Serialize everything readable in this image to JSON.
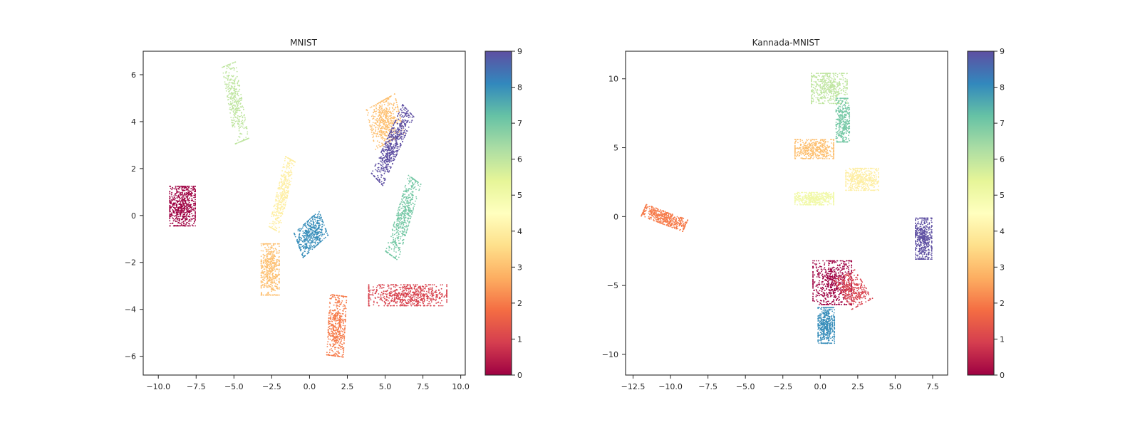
{
  "chart_data": [
    {
      "type": "scatter",
      "title": "MNIST",
      "xlabel": "",
      "ylabel": "",
      "xlim": [
        -11.0,
        10.3
      ],
      "ylim": [
        -6.8,
        7.0
      ],
      "xticks": [
        -10.0,
        -7.5,
        -5.0,
        -2.5,
        0.0,
        2.5,
        5.0,
        7.5,
        10.0
      ],
      "xtick_labels": [
        "−10.0",
        "−7.5",
        "−5.0",
        "−2.5",
        "0.0",
        "2.5",
        "5.0",
        "7.5",
        "10.0"
      ],
      "yticks": [
        -6,
        -4,
        -2,
        0,
        2,
        4,
        6
      ],
      "ytick_labels": [
        "−6",
        "−4",
        "−2",
        "0",
        "2",
        "4",
        "6"
      ],
      "grid": false,
      "colormap": "Spectral",
      "colorbar": {
        "min": 0,
        "max": 9,
        "ticks": [
          0,
          1,
          2,
          3,
          4,
          5,
          6,
          7,
          8,
          9
        ],
        "tick_labels": [
          "0",
          "1",
          "2",
          "3",
          "4",
          "5",
          "6",
          "7",
          "8",
          "9"
        ]
      },
      "clusters": [
        {
          "label": 0,
          "center": [
            -8.4,
            0.4
          ],
          "spread": [
            0.85,
            0.85
          ],
          "angle": 0,
          "n": 650
        },
        {
          "label": 1,
          "center": [
            6.5,
            -3.4
          ],
          "spread": [
            2.6,
            0.45
          ],
          "angle": 0,
          "n": 700
        },
        {
          "label": 2,
          "center": [
            1.8,
            -4.7
          ],
          "spread": [
            0.55,
            1.3
          ],
          "angle": -5,
          "n": 500
        },
        {
          "label": 3,
          "center": [
            -2.6,
            -2.3
          ],
          "spread": [
            0.6,
            1.1
          ],
          "angle": 0,
          "n": 500
        },
        {
          "label": 3,
          "center": [
            5.0,
            4.0
          ],
          "spread": [
            1.0,
            0.9
          ],
          "angle": 20,
          "n": 500
        },
        {
          "label": 4,
          "center": [
            -1.8,
            0.9
          ],
          "spread": [
            0.35,
            1.6
          ],
          "angle": -20,
          "n": 400
        },
        {
          "label": 6,
          "center": [
            -4.9,
            4.8
          ],
          "spread": [
            0.45,
            1.7
          ],
          "angle": 15,
          "n": 380
        },
        {
          "label": 7,
          "center": [
            6.2,
            -0.1
          ],
          "spread": [
            0.45,
            1.8
          ],
          "angle": -25,
          "n": 500
        },
        {
          "label": 8,
          "center": [
            0.1,
            -0.8
          ],
          "spread": [
            0.95,
            0.6
          ],
          "angle": 30,
          "n": 500
        },
        {
          "label": 9,
          "center": [
            5.5,
            3.0
          ],
          "spread": [
            0.45,
            1.8
          ],
          "angle": -35,
          "n": 600
        }
      ]
    },
    {
      "type": "scatter",
      "title": "Kannada-MNIST",
      "xlabel": "",
      "ylabel": "",
      "xlim": [
        -13.0,
        8.5
      ],
      "ylim": [
        -11.5,
        12.0
      ],
      "xticks": [
        -12.5,
        -10.0,
        -7.5,
        -5.0,
        -2.5,
        0.0,
        2.5,
        5.0,
        7.5
      ],
      "xtick_labels": [
        "−12.5",
        "−10.0",
        "−7.5",
        "−5.0",
        "−2.5",
        "0.0",
        "2.5",
        "5.0",
        "7.5"
      ],
      "yticks": [
        -10,
        -5,
        0,
        5,
        10
      ],
      "ytick_labels": [
        "−10",
        "−5",
        "0",
        "5",
        "10"
      ],
      "grid": false,
      "colormap": "Spectral",
      "colorbar": {
        "min": 0,
        "max": 9,
        "ticks": [
          0,
          1,
          2,
          3,
          4,
          5,
          6,
          7,
          8,
          9
        ],
        "tick_labels": [
          "0",
          "1",
          "2",
          "3",
          "4",
          "5",
          "6",
          "7",
          "8",
          "9"
        ]
      },
      "clusters": [
        {
          "label": 0,
          "center": [
            0.8,
            -4.8
          ],
          "spread": [
            1.3,
            1.6
          ],
          "angle": 0,
          "n": 650
        },
        {
          "label": 1,
          "center": [
            2.2,
            -5.3
          ],
          "spread": [
            0.8,
            1.2
          ],
          "angle": 30,
          "n": 350
        },
        {
          "label": 2,
          "center": [
            -10.4,
            -0.1
          ],
          "spread": [
            1.5,
            0.45
          ],
          "angle": -22,
          "n": 500
        },
        {
          "label": 3,
          "center": [
            -0.4,
            4.9
          ],
          "spread": [
            1.3,
            0.7
          ],
          "angle": 0,
          "n": 450
        },
        {
          "label": 4,
          "center": [
            2.8,
            2.7
          ],
          "spread": [
            1.1,
            0.8
          ],
          "angle": 0,
          "n": 450
        },
        {
          "label": 5,
          "center": [
            -0.4,
            1.3
          ],
          "spread": [
            1.3,
            0.45
          ],
          "angle": 0,
          "n": 450
        },
        {
          "label": 6,
          "center": [
            0.6,
            9.3
          ],
          "spread": [
            1.2,
            1.1
          ],
          "angle": 0,
          "n": 500
        },
        {
          "label": 7,
          "center": [
            1.5,
            7.0
          ],
          "spread": [
            0.45,
            1.6
          ],
          "angle": 0,
          "n": 350
        },
        {
          "label": 8,
          "center": [
            0.4,
            -7.9
          ],
          "spread": [
            0.55,
            1.3
          ],
          "angle": 0,
          "n": 500
        },
        {
          "label": 9,
          "center": [
            6.9,
            -1.6
          ],
          "spread": [
            0.55,
            1.5
          ],
          "angle": 0,
          "n": 500
        }
      ]
    }
  ]
}
